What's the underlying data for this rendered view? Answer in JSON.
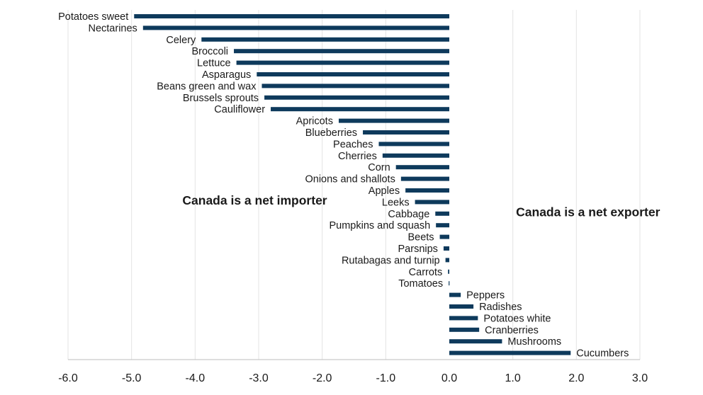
{
  "chart_data": {
    "type": "bar",
    "orientation": "horizontal",
    "title": "",
    "xlabel": "",
    "ylabel": "",
    "xlim": [
      -6.0,
      3.0
    ],
    "xticks": [
      -6.0,
      -5.0,
      -4.0,
      -3.0,
      -2.0,
      -1.0,
      0.0,
      1.0,
      2.0,
      3.0
    ],
    "tick_labels": [
      "-6.0",
      "-5.0",
      "-4.0",
      "-3.0",
      "-2.0",
      "-1.0",
      "0.0",
      "1.0",
      "2.0",
      "3.0"
    ],
    "grid": "vertical",
    "bar_color": "#0e3a5c",
    "categories": [
      "Potatoes sweet",
      "Nectarines",
      "Celery",
      "Broccoli",
      "Lettuce",
      "Asparagus",
      "Beans green and wax",
      "Brussels sprouts",
      "Cauliflower",
      "Apricots",
      "Blueberries",
      "Peaches",
      "Cherries",
      "Corn",
      "Onions and shallots",
      "Apples",
      "Leeks",
      "Cabbage",
      "Pumpkins and squash",
      "Beets",
      "Parsnips",
      "Rutabagas and turnip",
      "Carrots",
      "Tomatoes",
      "Peppers",
      "Radishes",
      "Potatoes white",
      "Cranberries",
      "Mushrooms",
      "Cucumbers"
    ],
    "values": [
      -4.96,
      -4.82,
      -3.9,
      -3.39,
      -3.35,
      -3.03,
      -2.95,
      -2.91,
      -2.81,
      -1.74,
      -1.36,
      -1.11,
      -1.05,
      -0.84,
      -0.76,
      -0.69,
      -0.54,
      -0.22,
      -0.21,
      -0.15,
      -0.09,
      -0.06,
      -0.02,
      -0.01,
      0.18,
      0.38,
      0.45,
      0.47,
      0.83,
      1.91
    ],
    "annotations": [
      {
        "text": "Canada is a net importer",
        "x": -4.2,
        "y_category": "Apples"
      },
      {
        "text": "Canada is a net exporter",
        "x": 1.05,
        "y_category": "Leeks"
      }
    ]
  }
}
